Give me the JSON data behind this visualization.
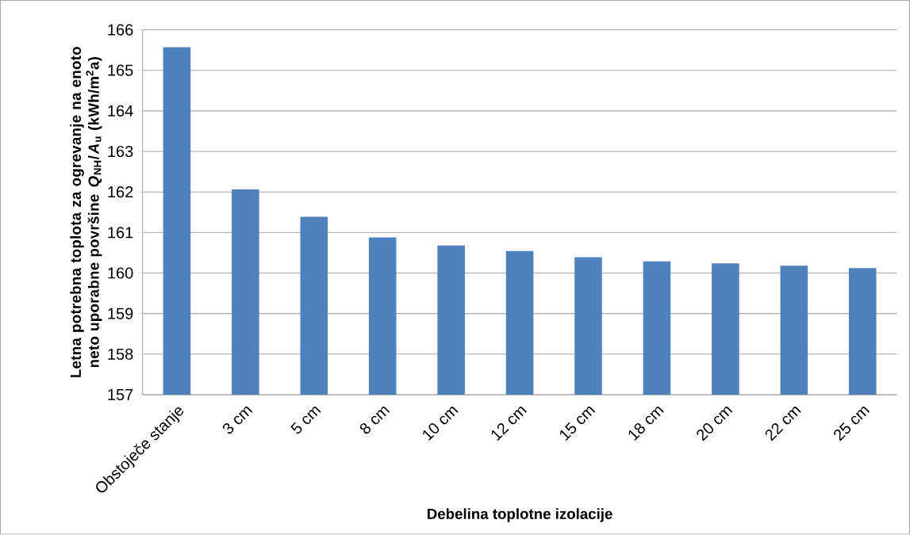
{
  "chart_data": {
    "type": "bar",
    "xlabel": "Debelina toplotne izolacije",
    "ylabel": "Letna potrebna toplota za ogrevanje na enoto neto uporabne površine *Q*$_{NH}$/*A*$_{u}$ (kWh/m$^{2}$a)",
    "categories": [
      "Obstoječe stanje",
      "3 cm",
      "5 cm",
      "8 cm",
      "10 cm",
      "12 cm",
      "15 cm",
      "18 cm",
      "20 cm",
      "22 cm",
      "25 cm"
    ],
    "values": [
      165.57,
      162.06,
      161.39,
      160.88,
      160.68,
      160.54,
      160.39,
      160.29,
      160.24,
      160.18,
      160.12
    ],
    "color": "#4f81bd",
    "ylim": [
      157,
      166
    ],
    "yticks": [
      157,
      158,
      159,
      160,
      161,
      162,
      163,
      164,
      165,
      166
    ],
    "grid": "y"
  }
}
